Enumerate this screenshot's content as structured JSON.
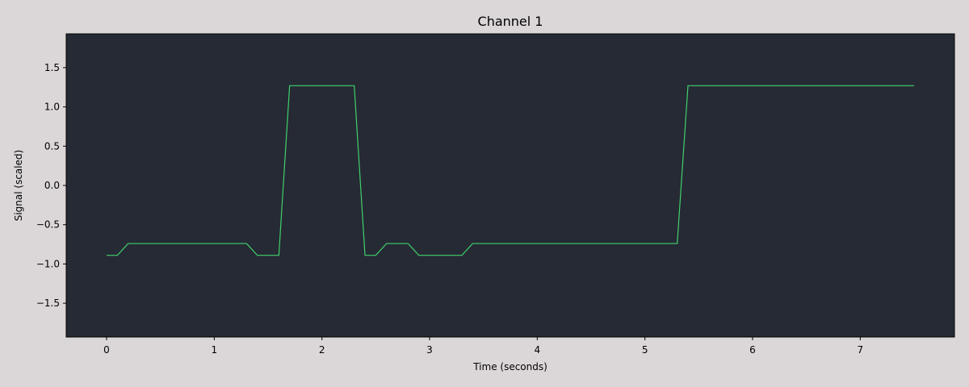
{
  "chart_data": {
    "type": "line",
    "title": "Channel 1",
    "xlabel": "Time (seconds)",
    "ylabel": "Signal (scaled)",
    "xlim": [
      -0.375,
      7.875
    ],
    "ylim": [
      -1.93,
      1.93
    ],
    "xticks": [
      0,
      1,
      2,
      3,
      4,
      5,
      6,
      7
    ],
    "xtick_labels": [
      "0",
      "1",
      "2",
      "3",
      "4",
      "5",
      "6",
      "7"
    ],
    "yticks": [
      -1.5,
      -1.0,
      -0.5,
      0.0,
      0.5,
      1.0,
      1.5
    ],
    "ytick_labels": [
      "−1.5",
      "−1.0",
      "−0.5",
      "0.0",
      "0.5",
      "1.0",
      "1.5"
    ],
    "grid": false,
    "colors": {
      "figure_background": "#dbd6d7",
      "plot_background": "#262a35",
      "line": "#3fd16a"
    },
    "series": [
      {
        "x": [
          0.0,
          0.1,
          0.2,
          0.3,
          0.4,
          0.5,
          0.6,
          0.7,
          0.8,
          0.9,
          1.0,
          1.1,
          1.2,
          1.3,
          1.4,
          1.5,
          1.6,
          1.7,
          1.8,
          1.9,
          2.0,
          2.1,
          2.2,
          2.3,
          2.4,
          2.5,
          2.6,
          2.7,
          2.8,
          2.9,
          3.0,
          3.1,
          3.2,
          3.3,
          3.4,
          3.5,
          3.6,
          3.7,
          3.8,
          3.9,
          4.0,
          4.1,
          4.2,
          4.3,
          4.4,
          4.5,
          4.6,
          4.7,
          4.8,
          4.9,
          5.0,
          5.1,
          5.2,
          5.3,
          5.4,
          5.5,
          5.6,
          5.7,
          5.8,
          5.9,
          6.0,
          6.1,
          6.2,
          6.3,
          6.4,
          6.5,
          6.6,
          6.7,
          6.8,
          6.9,
          7.0,
          7.1,
          7.2,
          7.3,
          7.4,
          7.5
        ],
        "y": [
          -0.89,
          -0.89,
          -0.74,
          -0.74,
          -0.74,
          -0.74,
          -0.74,
          -0.74,
          -0.74,
          -0.74,
          -0.74,
          -0.74,
          -0.74,
          -0.74,
          -0.89,
          -0.89,
          -0.89,
          1.27,
          1.27,
          1.27,
          1.27,
          1.27,
          1.27,
          1.27,
          -0.89,
          -0.89,
          -0.74,
          -0.74,
          -0.74,
          -0.89,
          -0.89,
          -0.89,
          -0.89,
          -0.89,
          -0.74,
          -0.74,
          -0.74,
          -0.74,
          -0.74,
          -0.74,
          -0.74,
          -0.74,
          -0.74,
          -0.74,
          -0.74,
          -0.74,
          -0.74,
          -0.74,
          -0.74,
          -0.74,
          -0.74,
          -0.74,
          -0.74,
          -0.74,
          1.27,
          1.27,
          1.27,
          1.27,
          1.27,
          1.27,
          1.27,
          1.27,
          1.27,
          1.27,
          1.27,
          1.27,
          1.27,
          1.27,
          1.27,
          1.27,
          1.27,
          1.27,
          1.27,
          1.27,
          1.27,
          1.27
        ]
      }
    ]
  }
}
